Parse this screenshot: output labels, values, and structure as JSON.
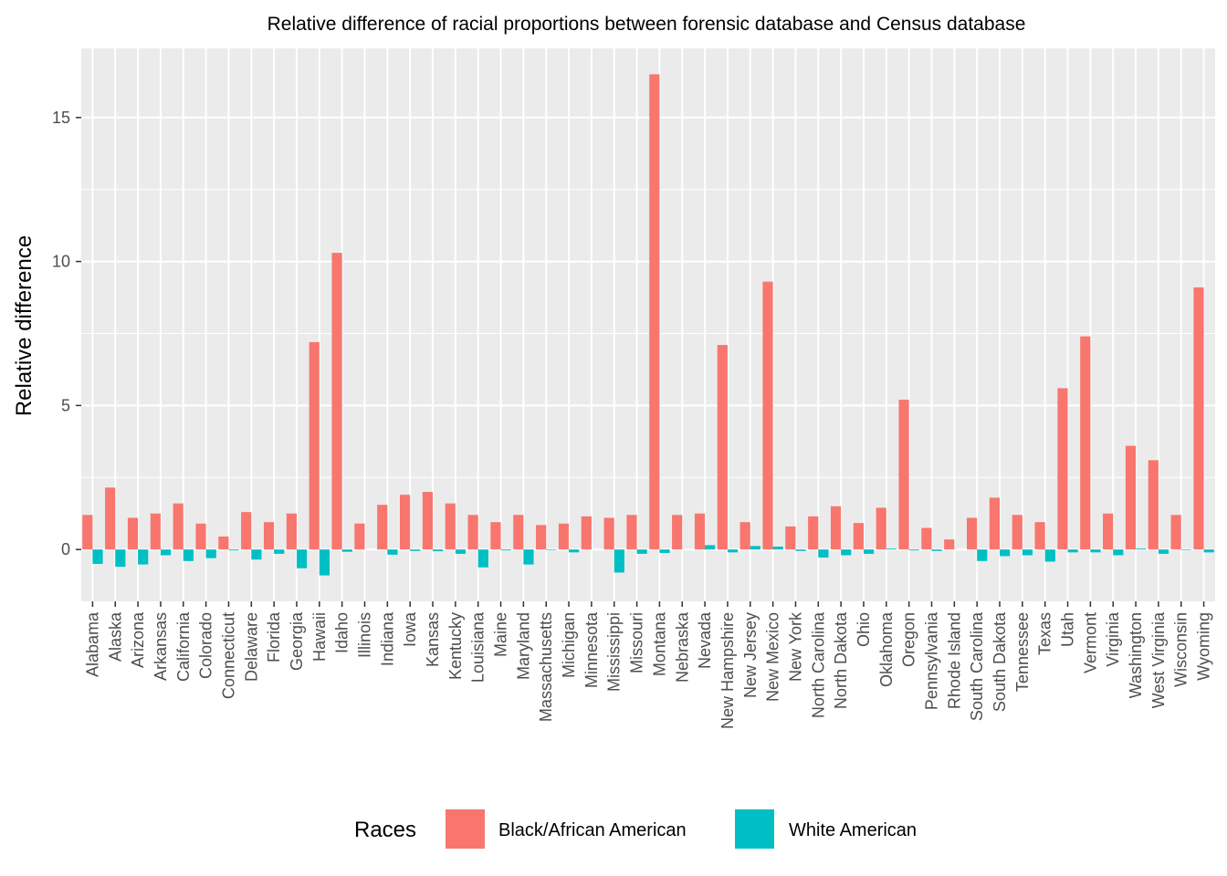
{
  "chart_data": {
    "type": "bar",
    "title": "Relative difference of racial proportions between forensic database and Census database",
    "xlabel": "",
    "ylabel": "Relative difference",
    "ylim": [
      -1.8,
      17.4
    ],
    "yticks": [
      0,
      5,
      10,
      15
    ],
    "grid": true,
    "legend": {
      "title": "Races",
      "placement": "bottom"
    },
    "categories": [
      "Alabama",
      "Alaska",
      "Arizona",
      "Arkansas",
      "California",
      "Colorado",
      "Connecticut",
      "Delaware",
      "Florida",
      "Georgia",
      "Hawaii",
      "Idaho",
      "Illinois",
      "Indiana",
      "Iowa",
      "Kansas",
      "Kentucky",
      "Louisiana",
      "Maine",
      "Maryland",
      "Massachusetts",
      "Michigan",
      "Minnesota",
      "Mississippi",
      "Missouri",
      "Montana",
      "Nebraska",
      "Nevada",
      "New Hampshire",
      "New Jersey",
      "New Mexico",
      "New York",
      "North Carolina",
      "North Dakota",
      "Ohio",
      "Oklahoma",
      "Oregon",
      "Pennsylvania",
      "Rhode Island",
      "South Carolina",
      "South Dakota",
      "Tennessee",
      "Texas",
      "Utah",
      "Vermont",
      "Virginia",
      "Washington",
      "West Virginia",
      "Wisconsin",
      "Wyoming"
    ],
    "series": [
      {
        "name": "Black/African American",
        "color": "#F8766D",
        "values": [
          1.2,
          2.15,
          1.1,
          1.25,
          1.6,
          0.9,
          0.45,
          1.3,
          0.95,
          1.25,
          7.2,
          10.3,
          0.9,
          1.55,
          1.9,
          2.0,
          1.6,
          1.2,
          0.95,
          1.2,
          0.85,
          0.9,
          1.15,
          1.1,
          1.2,
          16.5,
          1.2,
          1.25,
          7.1,
          0.95,
          9.3,
          0.8,
          1.15,
          1.5,
          0.92,
          1.45,
          5.2,
          0.75,
          0.35,
          1.1,
          1.8,
          1.2,
          0.95,
          5.6,
          7.4,
          1.25,
          3.6,
          3.1,
          1.2,
          9.1
        ]
      },
      {
        "name": "White American",
        "color": "#00BFC4",
        "values": [
          -0.5,
          -0.6,
          -0.52,
          -0.2,
          -0.4,
          -0.3,
          -0.03,
          -0.35,
          -0.15,
          -0.65,
          -0.9,
          -0.08,
          0.0,
          -0.18,
          -0.05,
          -0.06,
          -0.15,
          -0.62,
          -0.03,
          -0.52,
          -0.02,
          -0.1,
          0.0,
          -0.8,
          -0.15,
          -0.12,
          0.0,
          0.15,
          -0.1,
          0.12,
          0.1,
          -0.05,
          -0.28,
          -0.2,
          -0.15,
          0.03,
          -0.03,
          -0.05,
          0.0,
          -0.4,
          -0.23,
          -0.2,
          -0.42,
          -0.1,
          -0.1,
          -0.2,
          0.03,
          -0.15,
          -0.02,
          -0.1
        ]
      }
    ]
  }
}
